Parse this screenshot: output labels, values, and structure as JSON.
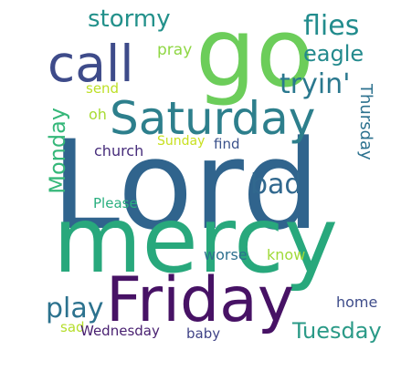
{
  "word_cloud": {
    "words": {
      "lord": {
        "text": "Lord",
        "color": "#30648d"
      },
      "mercy": {
        "text": "mercy",
        "color": "#28a87c"
      },
      "go": {
        "text": "go",
        "color": "#6ccd5a"
      },
      "friday": {
        "text": "Friday",
        "color": "#471265"
      },
      "saturday": {
        "text": "Saturday",
        "color": "#2d7f8c"
      },
      "call": {
        "text": "call",
        "color": "#3e4b8a"
      },
      "stormy": {
        "text": "stormy",
        "color": "#23918b"
      },
      "flies": {
        "text": "flies",
        "color": "#228c8d"
      },
      "eagle": {
        "text": "eagle",
        "color": "#238a8d"
      },
      "tryin": {
        "text": "tryin'",
        "color": "#2a788e"
      },
      "monday": {
        "text": "Monday",
        "color": "#35b779"
      },
      "bad": {
        "text": "bad",
        "color": "#31688e"
      },
      "thursday": {
        "text": "Thursday",
        "color": "#2c718e"
      },
      "play": {
        "text": "play",
        "color": "#2c728e"
      },
      "tuesday": {
        "text": "Tuesday",
        "color": "#2a9a87"
      },
      "pray": {
        "text": "pray",
        "color": "#8fd744"
      },
      "send": {
        "text": "send",
        "color": "#bddf26"
      },
      "oh": {
        "text": "oh",
        "color": "#a8db34"
      },
      "church": {
        "text": "church",
        "color": "#472d7b"
      },
      "sunday": {
        "text": "Sunday",
        "color": "#c8e020"
      },
      "find": {
        "text": "find",
        "color": "#3b528b"
      },
      "please": {
        "text": "Please",
        "color": "#29af7f"
      },
      "worse": {
        "text": "worse",
        "color": "#2d708e"
      },
      "know": {
        "text": "know",
        "color": "#a0da39"
      },
      "home": {
        "text": "home",
        "color": "#3e4c8a"
      },
      "sad": {
        "text": "sad",
        "color": "#b5de2b"
      },
      "wednesday": {
        "text": "Wednesday",
        "color": "#481f70"
      },
      "baby": {
        "text": "baby",
        "color": "#414487"
      }
    }
  }
}
